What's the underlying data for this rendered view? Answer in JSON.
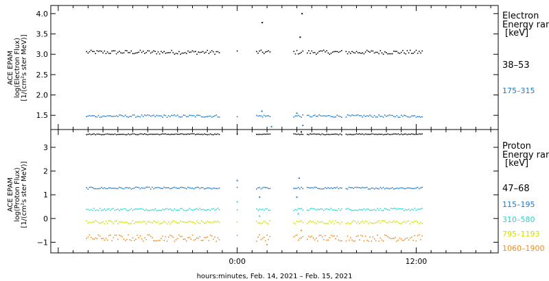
{
  "chart_data": [
    {
      "type": "scatter",
      "panel": "electron",
      "ylabel_lines": [
        "ACE EPAM",
        "log(Electron Flux)",
        "[1/(cm²s ster MeV)]"
      ],
      "legend_title_lines": [
        "Electron",
        "Energy ranges",
        "[keV]"
      ],
      "ylim": [
        1.15,
        4.2
      ],
      "yticks": [
        1.5,
        2.0,
        2.5,
        3.0,
        3.5,
        4.0
      ],
      "ytick_labels": [
        "1.5",
        "2.0",
        "2.5",
        "3.0",
        "3.5",
        "4.0"
      ],
      "series": [
        {
          "name": "38–53",
          "color": "#000000",
          "level": 3.05,
          "noise": 0.05,
          "outliers": [
            {
              "x": 1.68,
              "y": 3.78
            },
            {
              "x": 4.35,
              "y": 4.0
            },
            {
              "x": 4.22,
              "y": 3.42
            }
          ]
        },
        {
          "name": "175–315",
          "color": "#1e78c8",
          "level": 1.48,
          "noise": 0.03,
          "outliers": [
            {
              "x": 1.65,
              "y": 1.6
            },
            {
              "x": 2.3,
              "y": 1.22
            },
            {
              "x": 4.4,
              "y": 1.25
            },
            {
              "x": 4.0,
              "y": 1.55
            }
          ]
        }
      ]
    },
    {
      "type": "scatter",
      "panel": "proton",
      "xlabel": "hours:minutes, Feb. 14, 2021 – Feb. 15, 2021",
      "ylabel_lines": [
        "ACE EPAM",
        "log(Proton Flux)",
        "[1/(cm²s ster MeV)]"
      ],
      "legend_title_lines": [
        "Proton",
        "Energy ranges",
        "[keV]"
      ],
      "ylim": [
        -1.45,
        3.75
      ],
      "yticks": [
        -1,
        0,
        1,
        2,
        3
      ],
      "ytick_labels": [
        "−1",
        "0",
        "1",
        "2",
        "3"
      ],
      "xlim": [
        -12.5,
        17.5
      ],
      "xticks": [
        0,
        12
      ],
      "xtick_labels": [
        "0:00",
        "12:00"
      ],
      "series": [
        {
          "name": "47–68",
          "color": "#000000",
          "level": 3.55,
          "noise": 0.02,
          "outliers": [
            {
              "x": 4.3,
              "y": 3.65
            }
          ]
        },
        {
          "name": "115–195",
          "color": "#1e78c8",
          "level": 1.28,
          "noise": 0.04,
          "outliers": [
            {
              "x": 0.0,
              "y": 1.6
            },
            {
              "x": 4.15,
              "y": 1.7
            },
            {
              "x": 4.0,
              "y": 0.9
            },
            {
              "x": 1.5,
              "y": 0.9
            }
          ]
        },
        {
          "name": "310–580",
          "color": "#2ad4cc",
          "level": 0.38,
          "noise": 0.05,
          "outliers": [
            {
              "x": 0.0,
              "y": 0.7
            },
            {
              "x": 1.5,
              "y": 0.1
            },
            {
              "x": 4.1,
              "y": 0.2
            }
          ]
        },
        {
          "name": "795–1193",
          "color": "#cfe000",
          "level": -0.16,
          "noise": 0.07,
          "outliers": []
        },
        {
          "name": "1060–1900",
          "color": "#f28a1e",
          "level": -0.82,
          "noise": 0.14,
          "outliers": [
            {
              "x": 2.0,
              "y": -1.1
            },
            {
              "x": 4.3,
              "y": -0.5
            }
          ]
        }
      ]
    }
  ],
  "data_x_segments": [
    [
      -10.1,
      -1.2
    ],
    [
      0.0,
      0.05
    ],
    [
      1.3,
      2.2
    ],
    [
      3.8,
      4.45
    ],
    [
      4.7,
      7.0
    ],
    [
      7.3,
      12.4
    ]
  ],
  "data_x_step": 0.1
}
